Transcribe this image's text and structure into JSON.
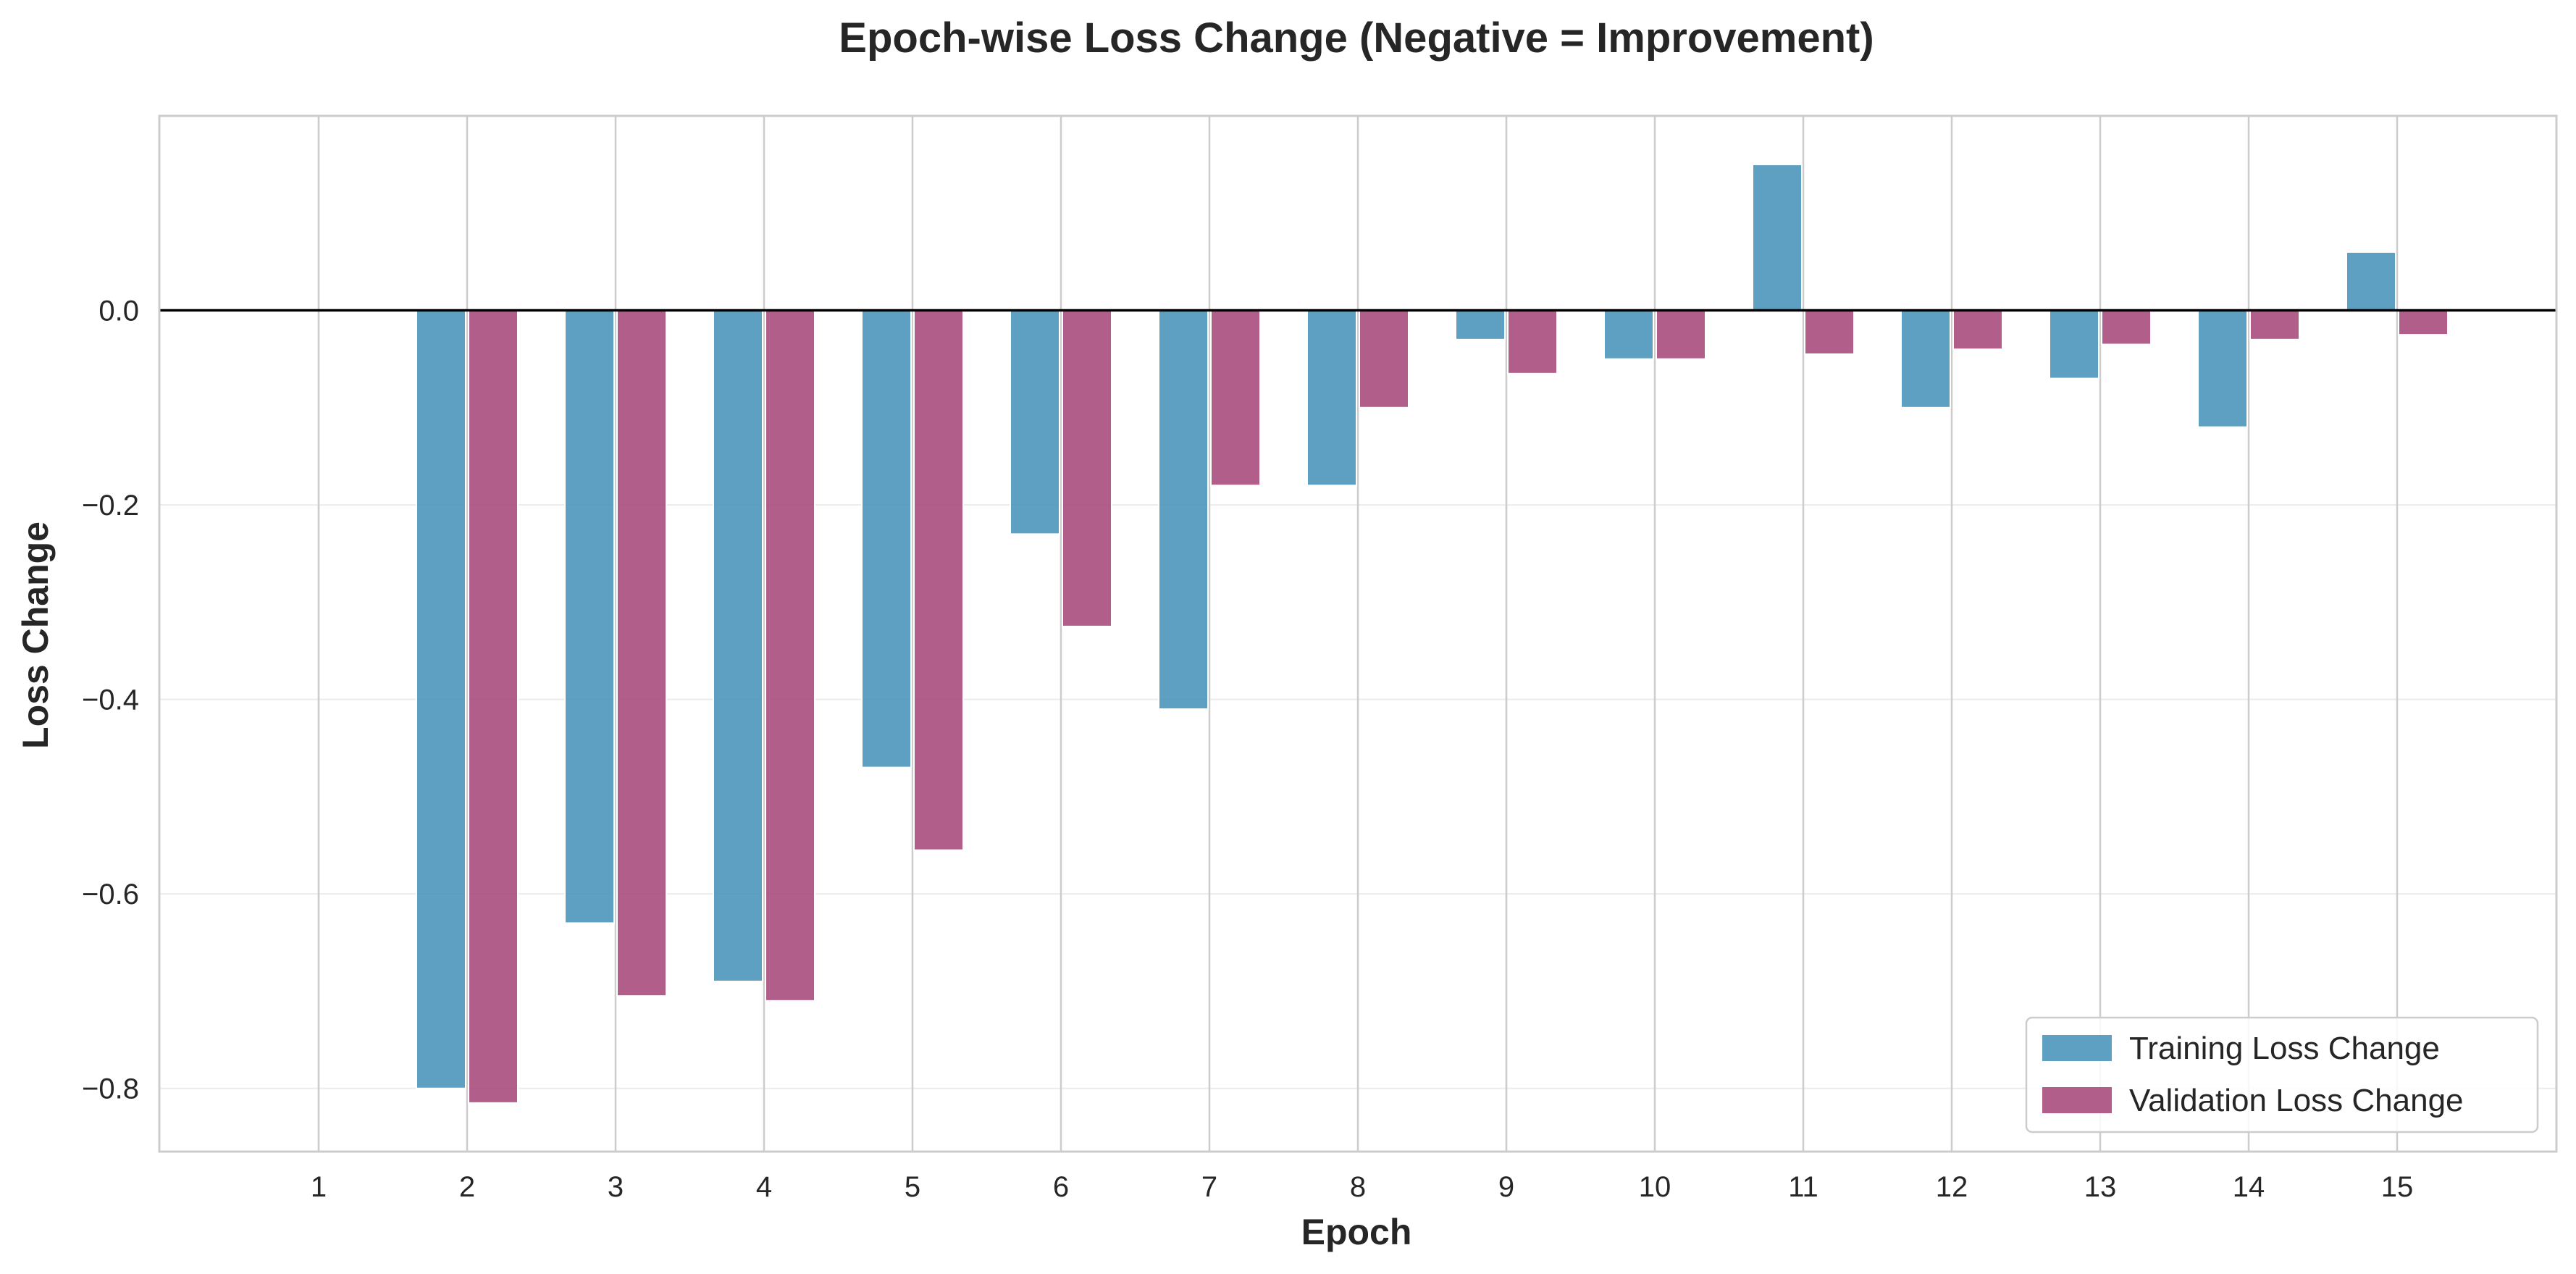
{
  "chart_data": {
    "type": "bar",
    "title": "Epoch-wise Loss Change (Negative = Improvement)",
    "xlabel": "Epoch",
    "ylabel": "Loss Change",
    "categories": [
      "1",
      "2",
      "3",
      "4",
      "5",
      "6",
      "7",
      "8",
      "9",
      "10",
      "11",
      "12",
      "13",
      "14",
      "15"
    ],
    "series": [
      {
        "name": "Training Loss Change",
        "color": "#4b96ba",
        "values": [
          0,
          -0.8,
          -0.63,
          -0.69,
          -0.47,
          -0.23,
          -0.41,
          -0.18,
          -0.03,
          -0.05,
          0.15,
          -0.1,
          -0.07,
          -0.12,
          0.06
        ]
      },
      {
        "name": "Validation Loss Change",
        "color": "#a84d7e",
        "values": [
          0,
          -0.815,
          -0.705,
          -0.71,
          -0.555,
          -0.325,
          -0.18,
          -0.1,
          -0.065,
          -0.05,
          -0.045,
          -0.04,
          -0.035,
          -0.03,
          -0.025
        ]
      }
    ],
    "yticks": [
      "−0.8",
      "−0.6",
      "−0.4",
      "−0.2",
      "0.0"
    ],
    "ytick_values": [
      -0.8,
      -0.6,
      -0.4,
      -0.2,
      0.0
    ],
    "ylim": [
      -0.865,
      0.2
    ],
    "grid": true,
    "legend_position": "lower-right"
  }
}
